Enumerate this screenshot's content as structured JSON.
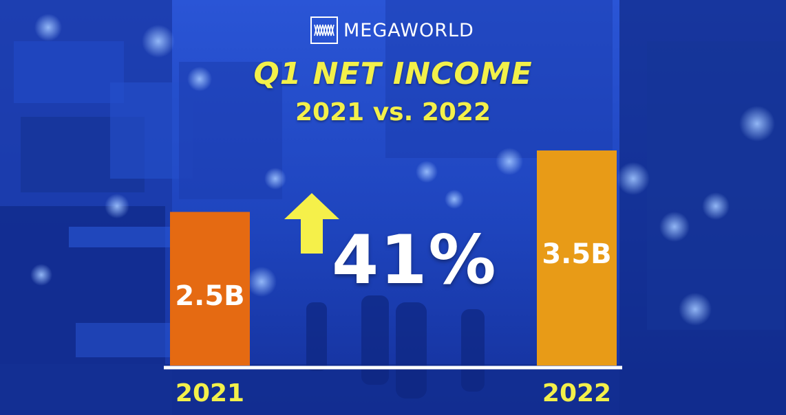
{
  "brand": {
    "name": "MEGAWORLD",
    "logo_icon": "megaworld-logo-icon"
  },
  "title": "Q1 NET INCOME",
  "subtitle": "2021 vs. 2022",
  "growth": {
    "value": "41%",
    "icon": "arrow-up-icon",
    "color": "#f5f04a"
  },
  "colors": {
    "background": "#1b3fb8",
    "title_text": "#f3f04a",
    "bar_2021": "#e56a12",
    "bar_2022": "#e89b17",
    "baseline": "#ffffff"
  },
  "chart_data": {
    "type": "bar",
    "categories": [
      "2021",
      "2022"
    ],
    "values": [
      2.5,
      3.5
    ],
    "value_labels": [
      "2.5B",
      "3.5B"
    ],
    "title": "Q1 NET INCOME",
    "subtitle": "2021 vs. 2022",
    "xlabel": "",
    "ylabel": "",
    "ylim": [
      0,
      3.5
    ],
    "grid": false
  }
}
